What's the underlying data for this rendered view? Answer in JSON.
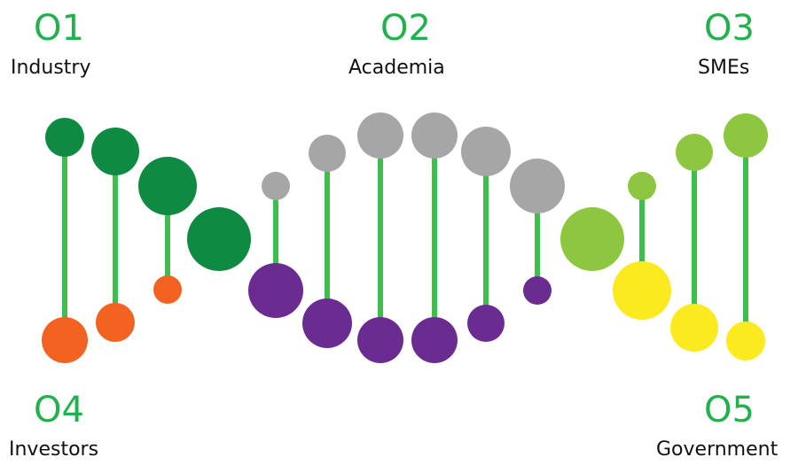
{
  "accent_color": "#22b14c",
  "groups": {
    "o1": {
      "code": "O1",
      "name": "Industry"
    },
    "o2": {
      "code": "O2",
      "name": "Academia"
    },
    "o3": {
      "code": "O3",
      "name": "SMEs"
    },
    "o4": {
      "code": "O4",
      "name": "Investors"
    },
    "o5": {
      "code": "O5",
      "name": "Government"
    }
  },
  "colors": {
    "stem": "#3cbf4c",
    "industry": "#0f8a42",
    "academia": "#a6a6a6",
    "smes": "#8dc63f",
    "investors": "#f26322",
    "academia_bottom": "#6b2c91",
    "government": "#fbea1f"
  }
}
